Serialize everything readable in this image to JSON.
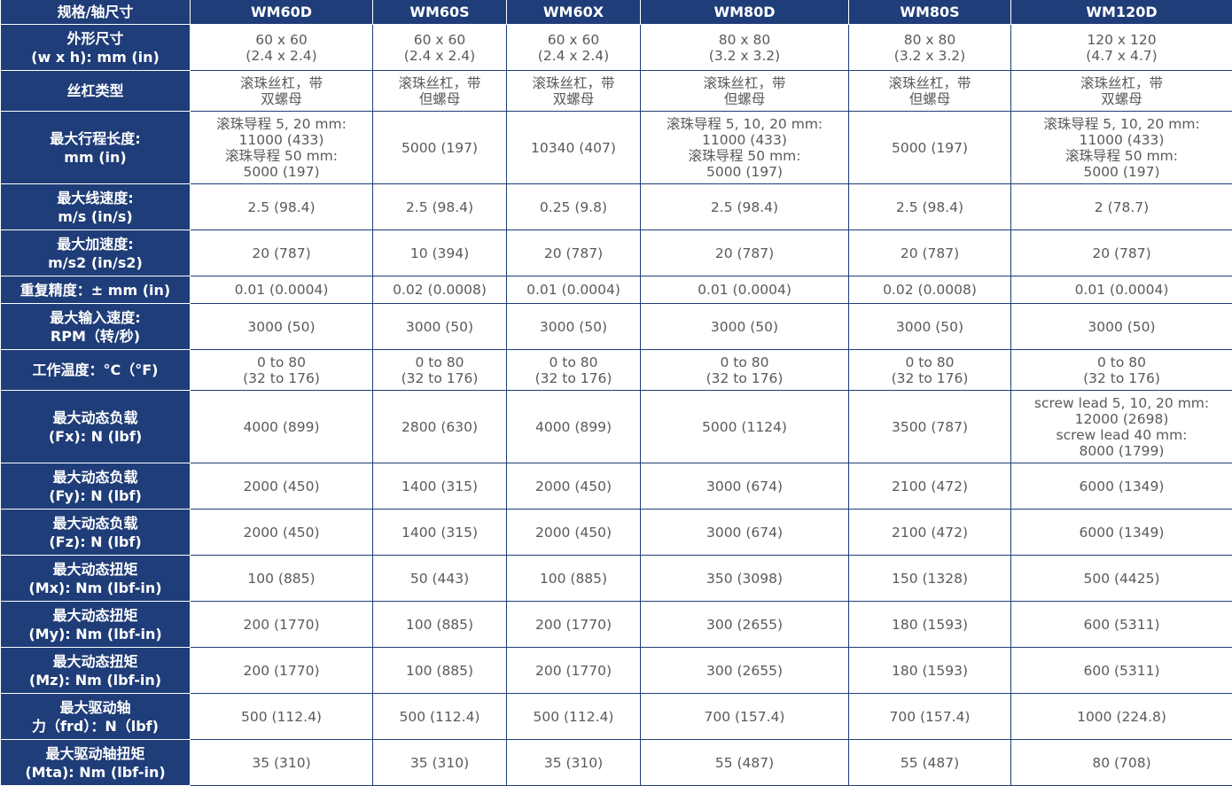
{
  "table": {
    "headers": [
      "规格/轴尺寸",
      "WM60D",
      "WM60S",
      "WM60X",
      "WM80D",
      "WM80S",
      "WM120D"
    ],
    "rows": [
      {
        "label": "外形尺寸\n(w x h): mm (in)",
        "values": [
          "60 x 60\n(2.4 x 2.4)",
          "60 x 60\n(2.4 x 2.4)",
          "60 x 60\n(2.4 x 2.4)",
          "80 x 80\n(3.2 x 3.2)",
          "80 x 80\n(3.2 x 3.2)",
          "120 x 120\n(4.7 x 4.7)"
        ]
      },
      {
        "label": "丝杠类型",
        "values": [
          "滚珠丝杠，带\n双螺母",
          "滚珠丝杠，带\n但螺母",
          "滚珠丝杠，带\n双螺母",
          "滚珠丝杠，带\n但螺母",
          "滚珠丝杠，带\n但螺母",
          "滚珠丝杠，带\n双螺母"
        ]
      },
      {
        "label": "最大行程长度:\nmm (in)",
        "values": [
          "滚珠导程 5, 20 mm:\n11000 (433)\n滚珠导程 50 mm:\n5000 (197)",
          "5000 (197)",
          "10340 (407)",
          "滚珠导程 5, 10, 20 mm:\n11000 (433)\n滚珠导程 50 mm:\n5000 (197)",
          "5000 (197)",
          "滚珠导程 5, 10, 20 mm:\n11000 (433)\n滚珠导程 50 mm:\n5000 (197)"
        ]
      },
      {
        "label": "最大线速度:\nm/s (in/s)",
        "values": [
          "2.5 (98.4)",
          "2.5 (98.4)",
          "0.25 (9.8)",
          "2.5 (98.4)",
          "2.5 (98.4)",
          "2 (78.7)"
        ]
      },
      {
        "label": "最大加速度:\nm/s2 (in/s2)",
        "values": [
          "20 (787)",
          "10 (394)",
          "20 (787)",
          "20 (787)",
          "20 (787)",
          "20 (787)"
        ]
      },
      {
        "label": "重复精度：± mm (in)",
        "values": [
          "0.01 (0.0004)",
          "0.02 (0.0008)",
          "0.01 (0.0004)",
          "0.01 (0.0004)",
          "0.02 (0.0008)",
          "0.01 (0.0004)"
        ]
      },
      {
        "label": "最大输入速度:\nRPM（转/秒)",
        "values": [
          "3000 (50)",
          "3000 (50)",
          "3000 (50)",
          "3000 (50)",
          "3000 (50)",
          "3000 (50)"
        ]
      },
      {
        "label": "工作温度：°C（°F)",
        "values": [
          "0 to 80\n(32 to 176)",
          "0 to 80\n(32 to 176)",
          "0 to 80\n(32 to 176)",
          "0 to 80\n(32 to 176)",
          "0 to 80\n(32 to 176)",
          "0 to 80\n(32 to 176)"
        ]
      },
      {
        "label": "最大动态负载\n(Fx): N (lbf)",
        "values": [
          "4000 (899)",
          "2800 (630)",
          "4000 (899)",
          "5000 (1124)",
          "3500 (787)",
          "screw lead 5, 10, 20 mm:\n12000 (2698)\nscrew lead 40 mm:\n8000 (1799)"
        ]
      },
      {
        "label": "最大动态负载\n(Fy): N (lbf)",
        "values": [
          "2000 (450)",
          "1400 (315)",
          "2000 (450)",
          "3000 (674)",
          "2100 (472)",
          "6000 (1349)"
        ]
      },
      {
        "label": "最大动态负载\n(Fz): N (lbf)",
        "values": [
          "2000 (450)",
          "1400 (315)",
          "2000 (450)",
          "3000 (674)",
          "2100 (472)",
          "6000 (1349)"
        ]
      },
      {
        "label": "最大动态扭矩\n(Mx): Nm (lbf-in)",
        "values": [
          "100 (885)",
          "50 (443)",
          "100 (885)",
          "350 (3098)",
          "150 (1328)",
          "500 (4425)"
        ]
      },
      {
        "label": "最大动态扭矩\n(My): Nm (lbf-in)",
        "values": [
          "200 (1770)",
          "100 (885)",
          "200 (1770)",
          "300 (2655)",
          "180 (1593)",
          "600 (5311)"
        ]
      },
      {
        "label": "最大动态扭矩\n(Mz): Nm (lbf-in)",
        "values": [
          "200 (1770)",
          "100 (885)",
          "200 (1770)",
          "300 (2655)",
          "180 (1593)",
          "600 (5311)"
        ]
      },
      {
        "label": "最大驱动轴\n力（frd）：N（lbf)",
        "values": [
          "500 (112.4)",
          "500 (112.4)",
          "500 (112.4)",
          "700 (157.4)",
          "700 (157.4)",
          "1000 (224.8)"
        ]
      },
      {
        "label": "最大驱动轴扭矩\n(Mta): Nm (lbf-in)",
        "values": [
          "35 (310)",
          "35 (310)",
          "35 (310)",
          "55 (487)",
          "55 (487)",
          "80 (708)"
        ]
      }
    ]
  },
  "colors": {
    "header_bg": "#1f3d78",
    "value_text": "#5a5a5a"
  }
}
